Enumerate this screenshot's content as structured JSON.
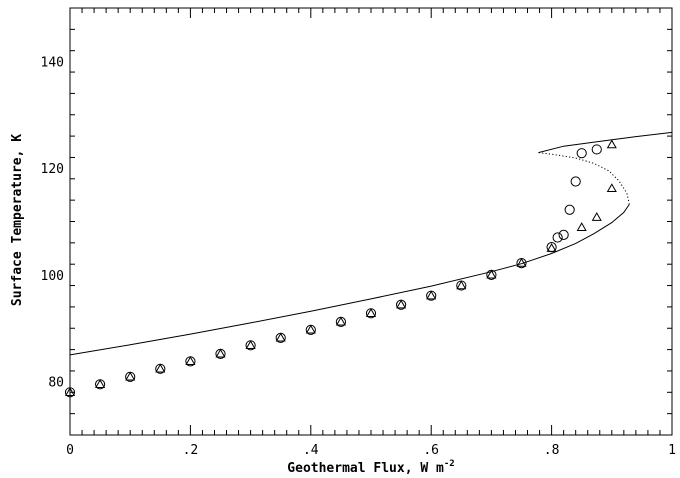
{
  "chart_data": {
    "type": "scatter",
    "xlabel": "Geothermal Flux, W m",
    "xlabel_superscript": "-2",
    "ylabel": "Surface Temperature, K",
    "xlim": [
      0,
      1
    ],
    "ylim": [
      70,
      150
    ],
    "x_ticks": [
      {
        "value": 0,
        "label": "0"
      },
      {
        "value": 0.2,
        "label": ".2"
      },
      {
        "value": 0.4,
        "label": ".4"
      },
      {
        "value": 0.6,
        "label": ".6"
      },
      {
        "value": 0.8,
        "label": ".8"
      },
      {
        "value": 1,
        "label": "1"
      }
    ],
    "y_ticks": [
      {
        "value": 80,
        "label": "80"
      },
      {
        "value": 100,
        "label": "100"
      },
      {
        "value": 120,
        "label": "120"
      },
      {
        "value": 140,
        "label": "140"
      }
    ],
    "grid": false,
    "series": [
      {
        "kind": "line",
        "style": "solid",
        "points": [
          [
            0,
            85.0
          ],
          [
            0.1,
            86.9
          ],
          [
            0.2,
            88.9
          ],
          [
            0.3,
            91.0
          ],
          [
            0.4,
            93.2
          ],
          [
            0.5,
            95.5
          ],
          [
            0.6,
            97.9
          ],
          [
            0.7,
            100.6
          ],
          [
            0.75,
            102.1
          ],
          [
            0.8,
            104.0
          ],
          [
            0.84,
            105.9
          ],
          [
            0.87,
            107.7
          ],
          [
            0.9,
            109.8
          ],
          [
            0.92,
            111.7
          ],
          [
            0.929,
            113.2
          ]
        ]
      },
      {
        "kind": "line",
        "style": "dotted",
        "points": [
          [
            0.929,
            113.2
          ],
          [
            0.925,
            115.3
          ],
          [
            0.912,
            117.6
          ],
          [
            0.895,
            119.5
          ],
          [
            0.87,
            120.9
          ],
          [
            0.84,
            121.9
          ],
          [
            0.8,
            122.6
          ],
          [
            0.778,
            122.9
          ]
        ]
      },
      {
        "kind": "line",
        "style": "solid",
        "points": [
          [
            0.778,
            122.9
          ],
          [
            0.82,
            124.1
          ],
          [
            0.88,
            125.0
          ],
          [
            0.94,
            125.9
          ],
          [
            1.0,
            126.7
          ]
        ]
      },
      {
        "kind": "marker",
        "marker": "circle",
        "points": [
          [
            0,
            78.0
          ],
          [
            0.05,
            79.5
          ],
          [
            0.1,
            80.9
          ],
          [
            0.15,
            82.4
          ],
          [
            0.2,
            83.8
          ],
          [
            0.25,
            85.2
          ],
          [
            0.3,
            86.8
          ],
          [
            0.35,
            88.2
          ],
          [
            0.4,
            89.7
          ],
          [
            0.45,
            91.2
          ],
          [
            0.5,
            92.8
          ],
          [
            0.55,
            94.4
          ],
          [
            0.6,
            96.1
          ],
          [
            0.65,
            98.0
          ],
          [
            0.7,
            100.0
          ],
          [
            0.75,
            102.2
          ],
          [
            0.8,
            105.2
          ],
          [
            0.81,
            107.0
          ],
          [
            0.82,
            107.5
          ],
          [
            0.83,
            112.2
          ],
          [
            0.84,
            117.5
          ],
          [
            0.85,
            122.8
          ],
          [
            0.875,
            123.5
          ]
        ]
      },
      {
        "kind": "marker",
        "marker": "triangle",
        "points": [
          [
            0,
            78.0
          ],
          [
            0.05,
            79.5
          ],
          [
            0.1,
            80.9
          ],
          [
            0.15,
            82.4
          ],
          [
            0.2,
            83.8
          ],
          [
            0.25,
            85.2
          ],
          [
            0.3,
            86.8
          ],
          [
            0.35,
            88.2
          ],
          [
            0.4,
            89.7
          ],
          [
            0.45,
            91.2
          ],
          [
            0.5,
            92.8
          ],
          [
            0.55,
            94.4
          ],
          [
            0.6,
            96.1
          ],
          [
            0.65,
            98.0
          ],
          [
            0.7,
            100.0
          ],
          [
            0.75,
            102.2
          ],
          [
            0.8,
            105.0
          ],
          [
            0.85,
            108.9
          ],
          [
            0.875,
            110.8
          ],
          [
            0.9,
            116.2
          ],
          [
            0.9,
            124.4
          ]
        ]
      }
    ]
  }
}
